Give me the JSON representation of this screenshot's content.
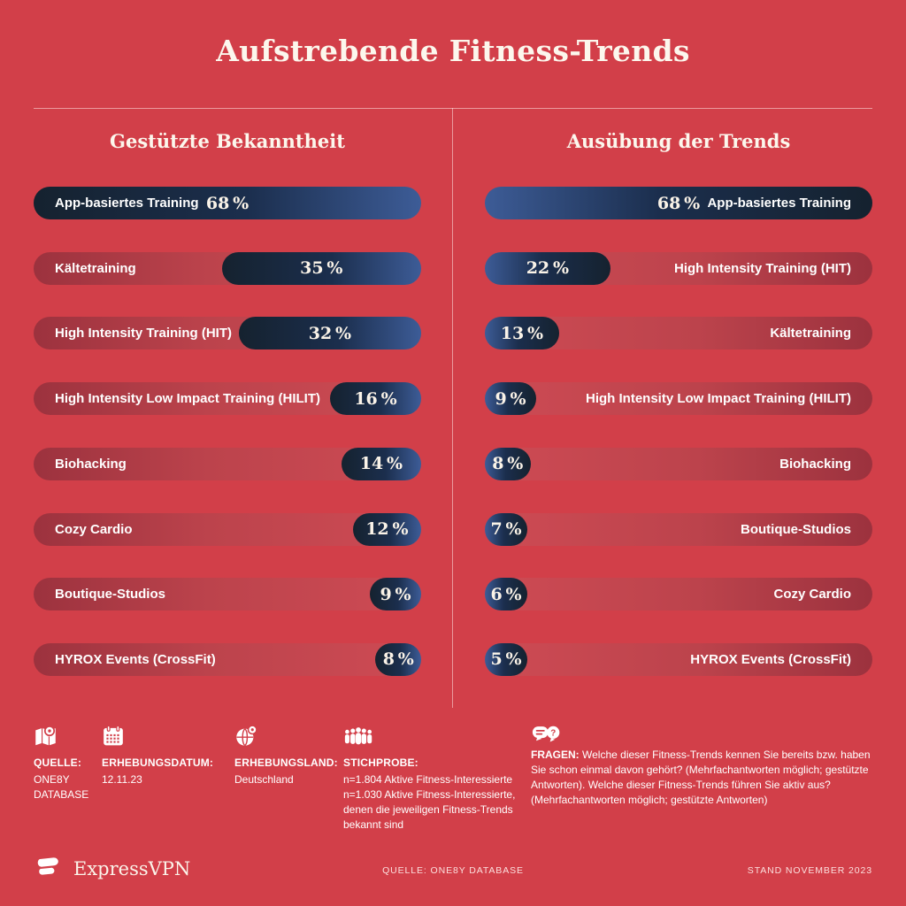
{
  "page": {
    "title": "Aufstrebende Fitness-Trends",
    "background_color": "#D23F49",
    "bar_navy_dark": "#15222F",
    "bar_navy_light": "#3D5C97",
    "track_maroon": "#9C323E",
    "text_cream": "#FCF7ED"
  },
  "columns": [
    {
      "title": "Gestützte Bekanntheit"
    },
    {
      "title": "Ausübung der Trends"
    }
  ],
  "chart_data": [
    {
      "type": "bar",
      "title": "Gestützte Bekanntheit",
      "orientation": "horizontal-right-anchored",
      "unit": "%",
      "xlim": [
        0,
        68
      ],
      "categories": [
        "App-basiertes Training",
        "Kältetraining",
        "High Intensity Training (HIT)",
        "High Intensity Low Impact Training (HILIT)",
        "Biohacking",
        "Cozy Cardio",
        "Boutique-Studios",
        "HYROX Events (CrossFit)"
      ],
      "values": [
        68,
        35,
        32,
        16,
        14,
        12,
        9,
        8
      ]
    },
    {
      "type": "bar",
      "title": "Ausübung der Trends",
      "orientation": "horizontal-left-anchored",
      "unit": "%",
      "xlim": [
        0,
        68
      ],
      "categories": [
        "App-basiertes Training",
        "High Intensity Training (HIT)",
        "Kältetraining",
        "High Intensity Low Impact Training (HILIT)",
        "Biohacking",
        "Boutique-Studios",
        "Cozy Cardio",
        "HYROX Events (CrossFit)"
      ],
      "values": [
        68,
        22,
        13,
        9,
        8,
        7,
        6,
        5
      ]
    }
  ],
  "footnotes": [
    {
      "icon": "map-pin-icon",
      "heading": "QUELLE:",
      "body": "ONE8Y\nDATABASE"
    },
    {
      "icon": "calendar-icon",
      "heading": "ERHEBUNGSDATUM:",
      "body": "12.11.23"
    },
    {
      "icon": "globe-pin-icon",
      "heading": "ERHEBUNGSLAND:",
      "body": "Deutschland"
    },
    {
      "icon": "people-icon",
      "heading": "STICHPROBE:",
      "body": "n=1.804 Aktive Fitness-Interessierte\nn=1.030 Aktive Fitness-Interessierte, denen die jeweiligen Fitness-Trends bekannt sind"
    },
    {
      "icon": "chat-question-icon",
      "heading": "FRAGEN:",
      "body": "Welche dieser Fitness-Trends kennen Sie bereits bzw. haben Sie schon einmal davon gehört? (Mehrfachantworten möglich; gestützte Antworten). Welche dieser Fitness-Trends führen Sie aktiv aus? (Mehrfachantworten möglich; gestützte Antworten)"
    }
  ],
  "bottom_bar": {
    "brand": "ExpressVPN",
    "source": "QUELLE: ONE8Y DATABASE",
    "stand": "STAND NOVEMBER 2023"
  }
}
